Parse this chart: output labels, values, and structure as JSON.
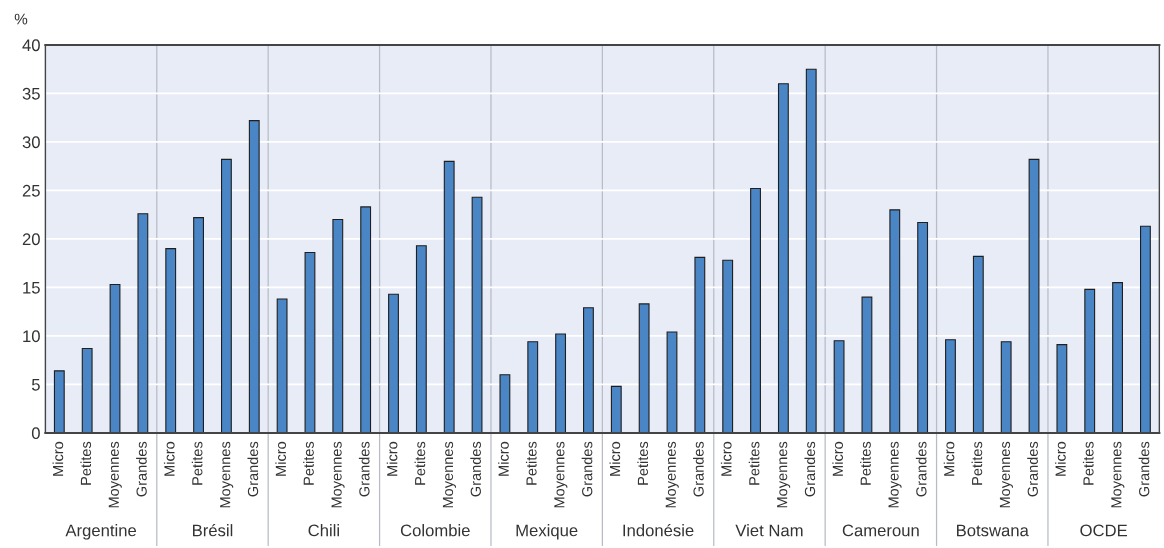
{
  "chart_data": {
    "type": "bar",
    "ylabel": "%",
    "categories": [
      "Micro",
      "Petites",
      "Moyennes",
      "Grandes",
      "Micro",
      "Petites",
      "Moyennes",
      "Grandes",
      "Micro",
      "Petites",
      "Moyennes",
      "Grandes",
      "Micro",
      "Petites",
      "Moyennes",
      "Grandes",
      "Micro",
      "Petites",
      "Moyennes",
      "Grandes",
      "Micro",
      "Petites",
      "Moyennes",
      "Grandes",
      "Micro",
      "Petites",
      "Moyennes",
      "Grandes",
      "Micro",
      "Petites",
      "Moyennes",
      "Grandes",
      "Micro",
      "Petites",
      "Moyennes",
      "Grandes",
      "Micro",
      "Petites",
      "Moyennes",
      "Grandes"
    ],
    "values": [
      6.4,
      8.7,
      15.3,
      22.6,
      19.0,
      22.2,
      28.2,
      32.2,
      13.8,
      18.6,
      22.0,
      23.3,
      14.3,
      19.3,
      28.0,
      24.3,
      6.0,
      9.4,
      10.2,
      12.9,
      4.8,
      13.3,
      10.4,
      18.1,
      17.8,
      25.2,
      36.0,
      37.5,
      9.5,
      14.0,
      23.0,
      21.7,
      9.6,
      18.2,
      9.4,
      28.2,
      9.1,
      14.8,
      15.5,
      21.3
    ],
    "color": "#4a86c6",
    "annotations": [
      "Argentine",
      "Brésil",
      "Chili",
      "Colombie",
      "Mexique",
      "Indonésie",
      "Viet Nam",
      "Cameroun",
      "Botswana",
      "OCDE"
    ],
    "ylim": [
      0,
      40
    ],
    "yticks": [
      0,
      5,
      10,
      15,
      20,
      25,
      30,
      35,
      40
    ],
    "grid": "y"
  }
}
